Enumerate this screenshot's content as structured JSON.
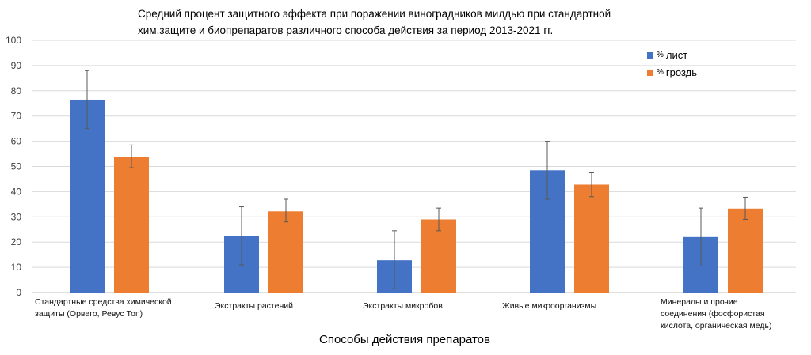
{
  "chart_data": {
    "type": "bar",
    "title_lines": [
      "Средний процент защитного эффекта при поражении виноградников милдью при стандартной",
      "хим.защите и биопрепаратов различного способа действия за период 2013-2021 гг."
    ],
    "xlabel": "Способы действия препаратов",
    "ylabel": "",
    "ylim": [
      0,
      100
    ],
    "yticks": [
      0,
      10,
      20,
      30,
      40,
      50,
      60,
      70,
      80,
      90,
      100
    ],
    "grid": true,
    "legend_position": "top-right",
    "categories": [
      [
        "Стандартные средства химической",
        "защиты (Орвего, Ревус Топ)"
      ],
      [
        "Экстракты растений"
      ],
      [
        "Экстракты микробов"
      ],
      [
        "Живые микроорганизмы"
      ],
      [
        "Минералы и прочие",
        "соединения (фосфористая",
        "кислота, органическая медь)"
      ]
    ],
    "series": [
      {
        "name": "лист",
        "legend_prefix": "%",
        "color": "#4472C4",
        "values": [
          76.5,
          22.5,
          12.8,
          48.5,
          22.0
        ],
        "error_low": [
          65.0,
          11.0,
          1.5,
          37.0,
          10.5
        ],
        "error_high": [
          88.0,
          34.0,
          24.5,
          60.0,
          33.5
        ]
      },
      {
        "name": "гроздь",
        "legend_prefix": "%",
        "color": "#ED7D31",
        "values": [
          53.8,
          32.2,
          29.0,
          42.8,
          33.3
        ],
        "error_low": [
          49.5,
          28.0,
          24.5,
          38.0,
          29.0
        ],
        "error_high": [
          58.5,
          37.0,
          33.5,
          47.5,
          37.8
        ]
      }
    ]
  }
}
